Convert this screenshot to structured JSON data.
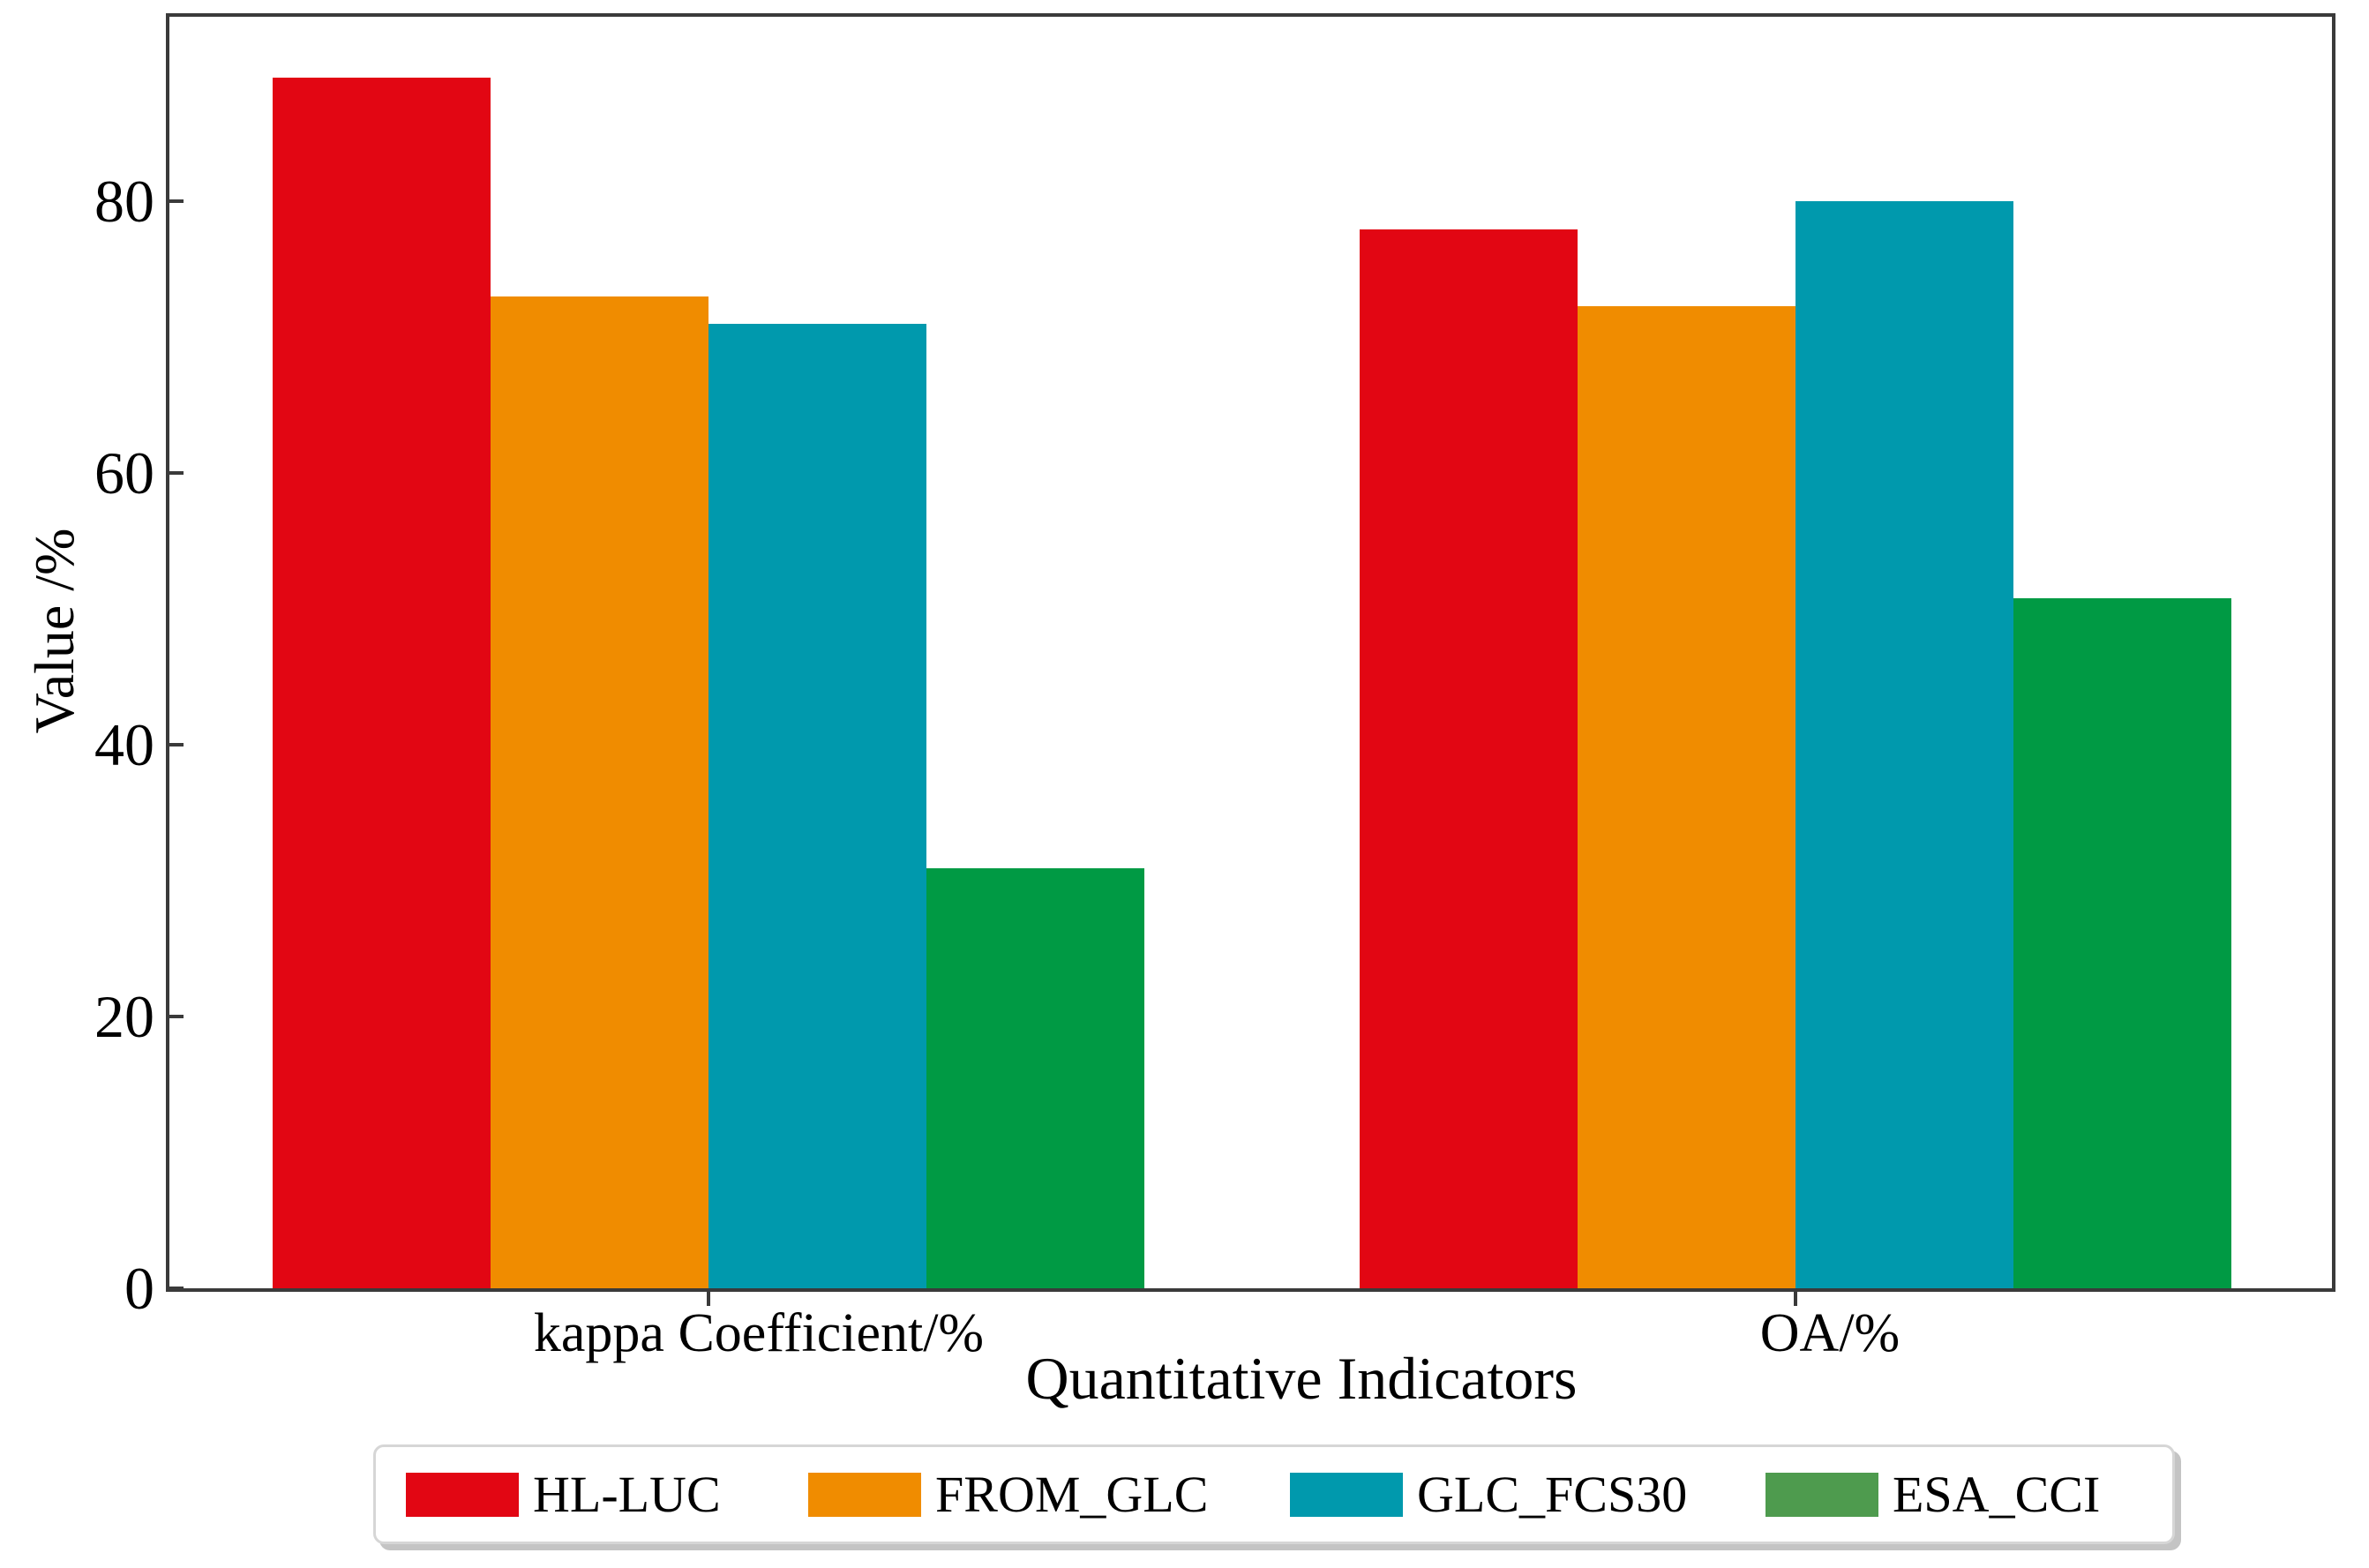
{
  "figure": {
    "background": "#ffffff",
    "axis_color": "#3a3a3a"
  },
  "chart_data": {
    "type": "bar",
    "title": "",
    "xlabel": "Quantitative Indicators",
    "ylabel": "Value /%",
    "categories": [
      "kappa Coefficient/%",
      "OA/%"
    ],
    "series": [
      {
        "name": "HL-LUC",
        "color": "#e20613",
        "legend_color": "#e20613",
        "values": [
          89.1,
          77.9
        ]
      },
      {
        "name": "FROM_GLC",
        "color": "#f08c00",
        "legend_color": "#f08c00",
        "values": [
          73.0,
          72.3
        ]
      },
      {
        "name": "GLC_FCS30",
        "color": "#0099ad",
        "legend_color": "#0099ad",
        "values": [
          71.0,
          80.0
        ]
      },
      {
        "name": "ESA_CCI",
        "color": "#009a44",
        "legend_color": "#4e9b4e",
        "values": [
          30.9,
          50.8
        ]
      }
    ],
    "ylim": [
      0,
      94
    ],
    "yticks": [
      0,
      20,
      40,
      60,
      80
    ],
    "grid": false,
    "legend_position": "bottom"
  }
}
